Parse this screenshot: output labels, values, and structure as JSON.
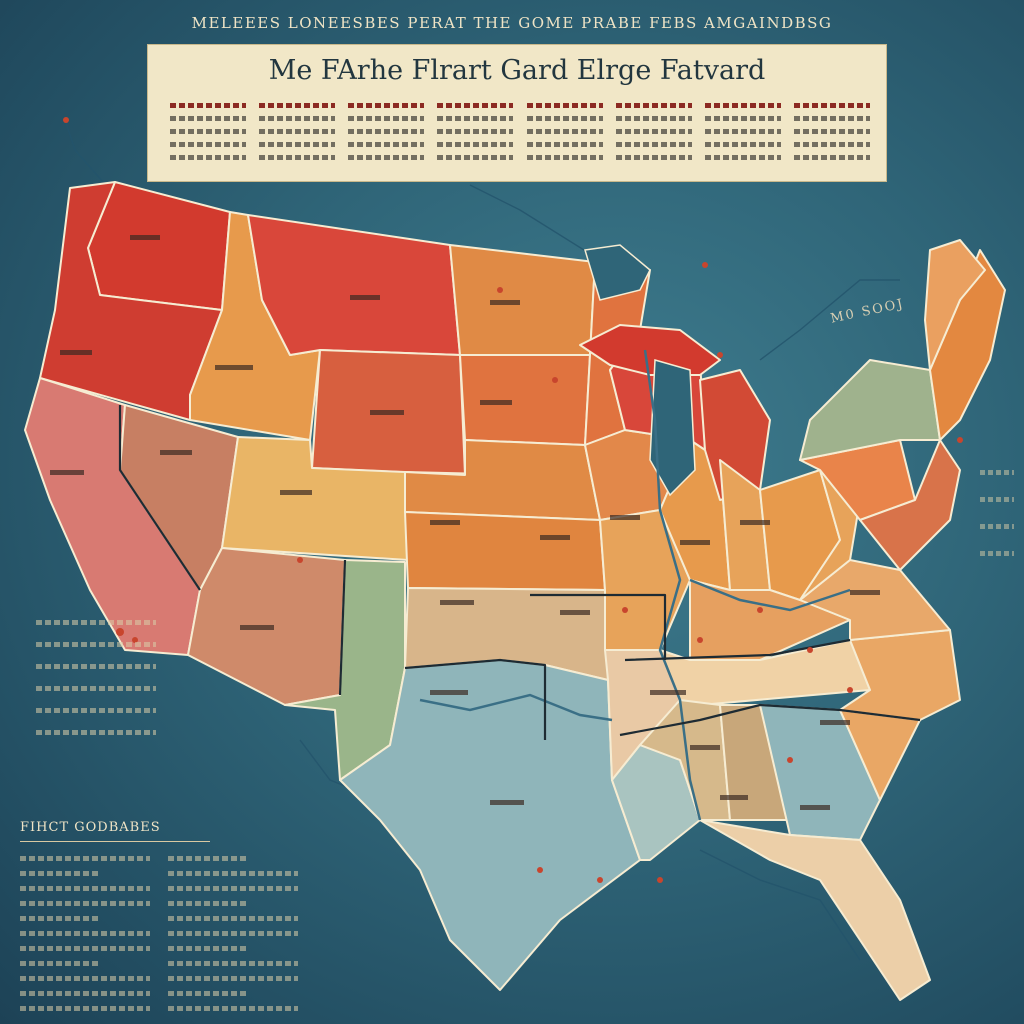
{
  "header": {
    "top_strip": "MELEEES LONEESBES PERAT THE GOME PRABE FEBS AMGAINDBSG",
    "title": "Me FArhe Flrart Gard Elrge Fatvard"
  },
  "legend": {
    "title": "FIHCT GODBABES"
  },
  "annotations": {
    "right_text": "M0 SOOJ"
  },
  "colors": {
    "ocean": "#2f6578",
    "panel": "#f1e7c7",
    "red": "#d23f2f",
    "orange": "#e08a45",
    "tan": "#e9b566",
    "teal": "#8fb5ba",
    "green": "#9ab58a"
  }
}
